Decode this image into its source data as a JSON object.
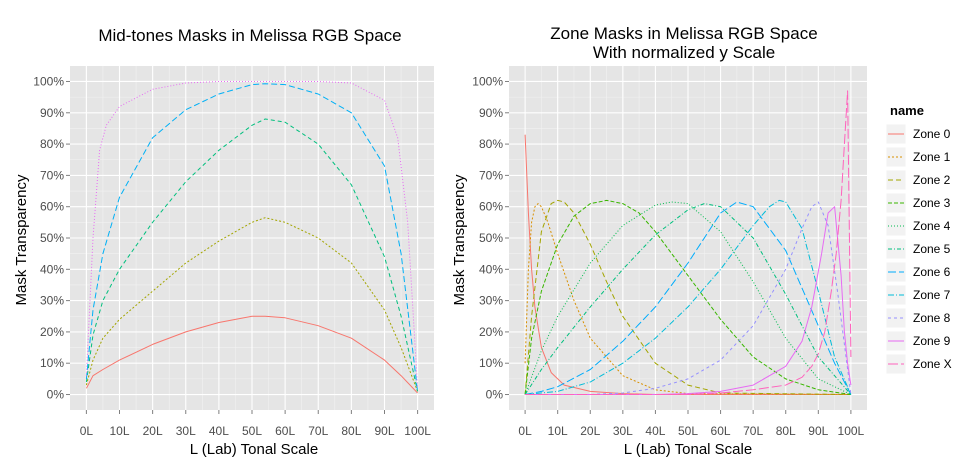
{
  "chart_data": [
    {
      "type": "line",
      "title": "Mid-tones Masks in Melissa RGB Space",
      "xlabel": "L (Lab) Tonal Scale",
      "ylabel": "Mask Transparency",
      "xlim": [
        0,
        100
      ],
      "ylim": [
        0,
        100
      ],
      "xticks": [
        "0L",
        "10L",
        "20L",
        "30L",
        "40L",
        "50L",
        "60L",
        "70L",
        "80L",
        "90L",
        "100L"
      ],
      "yticks": [
        "0%",
        "10%",
        "20%",
        "30%",
        "40%",
        "50%",
        "60%",
        "70%",
        "80%",
        "90%",
        "100%"
      ],
      "grid": true,
      "background": "#e5e5e5",
      "series": [
        {
          "color": "#f8766d",
          "dash": "",
          "x": [
            0,
            2,
            5,
            10,
            20,
            30,
            40,
            50,
            54,
            60,
            70,
            80,
            90,
            95,
            100
          ],
          "y": [
            2,
            6,
            8,
            11,
            16,
            20,
            23,
            25,
            25,
            24.5,
            22,
            18,
            11,
            6,
            0.5
          ]
        },
        {
          "color": "#a3a500",
          "dash": "2,2",
          "x": [
            0,
            2,
            5,
            10,
            20,
            30,
            40,
            50,
            54,
            60,
            70,
            80,
            90,
            95,
            100
          ],
          "y": [
            3,
            11,
            18,
            24,
            33,
            42,
            49,
            55,
            56.5,
            55,
            50,
            42,
            27,
            15,
            1
          ]
        },
        {
          "color": "#00bf7d",
          "dash": "4,3",
          "x": [
            0,
            2,
            5,
            10,
            20,
            30,
            40,
            50,
            54,
            60,
            70,
            80,
            90,
            95,
            100
          ],
          "y": [
            4,
            19,
            30,
            40,
            55,
            68,
            78,
            86,
            88,
            87,
            80,
            67,
            44,
            25,
            1
          ]
        },
        {
          "color": "#00b0f6",
          "dash": "6,3",
          "x": [
            0,
            2,
            5,
            10,
            20,
            30,
            40,
            50,
            54,
            60,
            70,
            80,
            90,
            95,
            100
          ],
          "y": [
            5,
            27,
            45,
            63,
            82,
            91,
            96,
            99,
            99.3,
            99,
            96,
            90,
            73,
            45,
            1
          ]
        },
        {
          "color": "#e76bf3",
          "dash": "1,2",
          "x": [
            0,
            2,
            4,
            6,
            10,
            20,
            30,
            40,
            50,
            60,
            70,
            80,
            90,
            94,
            97,
            100
          ],
          "y": [
            6,
            50,
            78,
            86,
            92,
            97.5,
            99.5,
            100,
            100,
            100,
            100,
            99.5,
            94,
            82,
            55,
            2
          ]
        }
      ]
    },
    {
      "type": "line",
      "title": "Zone Masks in Melissa RGB Space",
      "subtitle": "With normalized y Scale",
      "xlabel": "L (Lab) Tonal Scale",
      "ylabel": "Mask Transparency",
      "xlim": [
        0,
        100
      ],
      "ylim": [
        0,
        100
      ],
      "xticks": [
        "0L",
        "10L",
        "20L",
        "30L",
        "40L",
        "50L",
        "60L",
        "70L",
        "80L",
        "90L",
        "100L"
      ],
      "yticks": [
        "0%",
        "10%",
        "20%",
        "30%",
        "40%",
        "50%",
        "60%",
        "70%",
        "80%",
        "90%",
        "100%"
      ],
      "grid": true,
      "background": "#e5e5e5",
      "legend_position": "right",
      "legend_title": "name",
      "series": [
        {
          "name": "Zone 0",
          "color": "#f8766d",
          "dash": "",
          "x": [
            0,
            1,
            2,
            3,
            5,
            8,
            12,
            20,
            30,
            40,
            100
          ],
          "y": [
            83,
            58,
            40,
            28,
            15,
            7,
            3,
            1,
            0.3,
            0,
            0
          ]
        },
        {
          "name": "Zone 1",
          "color": "#d89000",
          "dash": "2,2",
          "x": [
            0,
            1,
            2,
            3,
            4,
            5,
            7,
            10,
            15,
            20,
            30,
            40,
            50,
            100
          ],
          "y": [
            10,
            40,
            55,
            60,
            61,
            60,
            55,
            45,
            30,
            18,
            6,
            1.5,
            0.3,
            0
          ]
        },
        {
          "name": "Zone 2",
          "color": "#a3a500",
          "dash": "5,3",
          "x": [
            0,
            2,
            5,
            8,
            10,
            12,
            15,
            20,
            25,
            30,
            40,
            50,
            60,
            100
          ],
          "y": [
            0,
            25,
            52,
            61,
            62,
            61.5,
            58,
            48,
            36,
            25,
            10,
            3,
            0.5,
            0
          ]
        },
        {
          "name": "Zone 3",
          "color": "#39b600",
          "dash": "4,2",
          "x": [
            0,
            2,
            5,
            10,
            15,
            20,
            25,
            30,
            35,
            40,
            50,
            60,
            70,
            80,
            90,
            100
          ],
          "y": [
            0,
            18,
            33,
            48,
            57,
            61,
            62,
            61,
            58,
            52,
            38,
            24,
            12,
            5,
            1.5,
            0
          ]
        },
        {
          "name": "Zone 4",
          "color": "#00bb4e",
          "dash": "1,2",
          "x": [
            0,
            5,
            10,
            20,
            30,
            40,
            45,
            50,
            60,
            70,
            80,
            90,
            100
          ],
          "y": [
            0,
            14,
            25,
            42,
            54,
            60.5,
            61.5,
            61,
            52,
            36,
            18,
            5,
            0
          ]
        },
        {
          "name": "Zone 5",
          "color": "#00bf7d",
          "dash": "4,2,1,2",
          "x": [
            0,
            5,
            10,
            20,
            30,
            40,
            50,
            55,
            60,
            70,
            80,
            90,
            100
          ],
          "y": [
            0,
            8,
            15,
            28,
            40,
            51,
            59,
            61,
            60,
            50,
            32,
            12,
            0
          ]
        },
        {
          "name": "Zone 6",
          "color": "#00acfc",
          "dash": "8,3",
          "x": [
            0,
            5,
            10,
            20,
            30,
            40,
            50,
            60,
            65,
            70,
            80,
            90,
            95,
            100
          ],
          "y": [
            0,
            1,
            2.5,
            8,
            17,
            28,
            42,
            58,
            61.5,
            60,
            46,
            22,
            10,
            0
          ]
        },
        {
          "name": "Zone 7",
          "color": "#00bcd8",
          "dash": "6,2,1,2",
          "x": [
            0,
            10,
            20,
            30,
            40,
            50,
            60,
            70,
            75,
            78,
            80,
            85,
            90,
            95,
            100
          ],
          "y": [
            0,
            1,
            4,
            10,
            18,
            28,
            40,
            54,
            60,
            62,
            61.5,
            53,
            33,
            12,
            0
          ]
        },
        {
          "name": "Zone 8",
          "color": "#9590ff",
          "dash": "3,3",
          "x": [
            0,
            20,
            30,
            40,
            50,
            60,
            70,
            80,
            85,
            88,
            90,
            93,
            96,
            100
          ],
          "y": [
            0,
            0,
            0.5,
            2,
            5,
            11,
            22,
            40,
            53,
            60,
            61.5,
            54,
            32,
            0
          ]
        },
        {
          "name": "Zone 9",
          "color": "#e76bf3",
          "dash": "",
          "x": [
            0,
            40,
            50,
            60,
            70,
            80,
            85,
            88,
            91,
            93,
            95,
            97,
            98,
            99,
            100
          ],
          "y": [
            0,
            0,
            0.3,
            1,
            3,
            9,
            17,
            28,
            45,
            58,
            60,
            38,
            20,
            10,
            3
          ]
        },
        {
          "name": "Zone X",
          "color": "#ff62bc",
          "dash": "10,3",
          "x": [
            0,
            50,
            60,
            70,
            80,
            85,
            88,
            90,
            92,
            94,
            95.5,
            97,
            98,
            99,
            100
          ],
          "y": [
            0,
            0,
            0.5,
            1.5,
            3,
            5.5,
            9,
            13,
            20,
            33,
            45,
            62,
            80,
            97,
            12
          ]
        }
      ]
    }
  ]
}
